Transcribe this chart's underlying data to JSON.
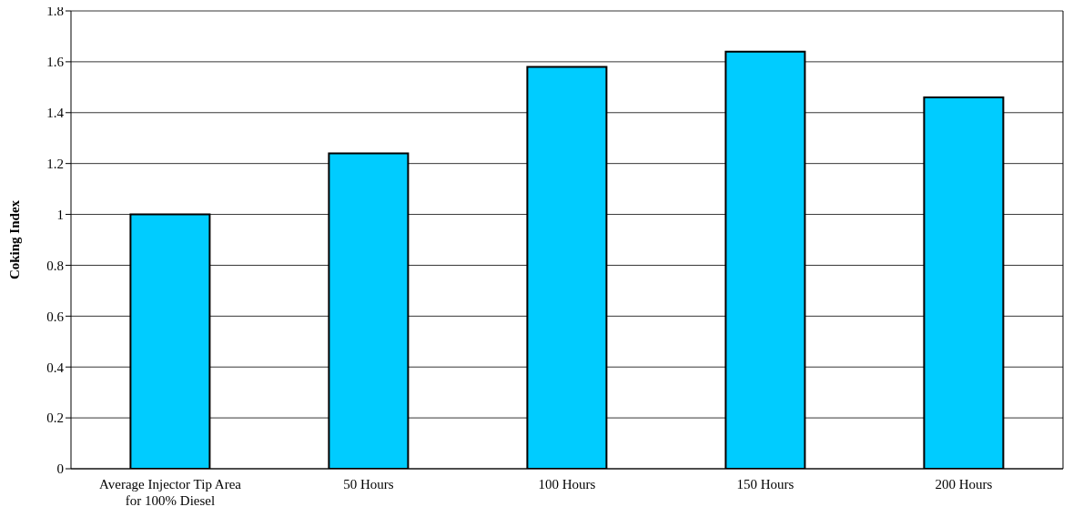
{
  "chart_data": {
    "type": "bar",
    "ylabel": "Coking Index",
    "categories": [
      "Average Injector Tip Area for 100% Diesel",
      "50 Hours",
      "100 Hours",
      "150 Hours",
      "200 Hours"
    ],
    "values": [
      1.0,
      1.24,
      1.58,
      1.64,
      1.46
    ],
    "color": "#00ccff",
    "ylim": [
      0,
      1.8
    ],
    "yticks": [
      0,
      0.2,
      0.4,
      0.6,
      0.8,
      1,
      1.2,
      1.4,
      1.6,
      1.8
    ],
    "grid": "y"
  }
}
